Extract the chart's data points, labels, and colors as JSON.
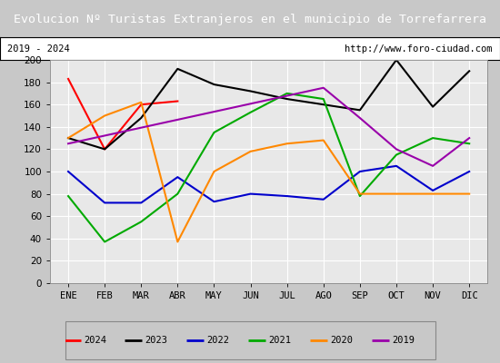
{
  "title": "Evolucion Nº Turistas Extranjeros en el municipio de Torrefarrera",
  "subtitle_left": "2019 - 2024",
  "subtitle_right": "http://www.foro-ciudad.com",
  "months": [
    "ENE",
    "FEB",
    "MAR",
    "ABR",
    "MAY",
    "JUN",
    "JUL",
    "AGO",
    "SEP",
    "OCT",
    "NOV",
    "DIC"
  ],
  "series": {
    "2024": [
      183,
      120,
      160,
      163,
      null,
      null,
      null,
      null,
      null,
      null,
      null,
      null
    ],
    "2023": [
      130,
      120,
      148,
      192,
      178,
      172,
      165,
      160,
      155,
      200,
      158,
      190
    ],
    "2022": [
      100,
      72,
      72,
      95,
      73,
      80,
      78,
      75,
      100,
      105,
      83,
      100
    ],
    "2021": [
      78,
      37,
      55,
      80,
      135,
      153,
      170,
      165,
      78,
      115,
      130,
      125
    ],
    "2020": [
      130,
      150,
      162,
      37,
      100,
      118,
      125,
      128,
      80,
      80,
      80,
      80
    ],
    "2019": [
      125,
      null,
      null,
      null,
      null,
      null,
      null,
      175,
      148,
      120,
      105,
      130
    ]
  },
  "colors": {
    "2024": "#ff0000",
    "2023": "#000000",
    "2022": "#0000cc",
    "2021": "#00aa00",
    "2020": "#ff8800",
    "2019": "#9900aa"
  },
  "ylim": [
    0,
    200
  ],
  "yticks": [
    0,
    20,
    40,
    60,
    80,
    100,
    120,
    140,
    160,
    180,
    200
  ],
  "title_bg": "#4472c4",
  "title_color": "#ffffff",
  "plot_bg": "#e8e8e8",
  "grid_color": "#ffffff",
  "outer_bg": "#c8c8c8"
}
